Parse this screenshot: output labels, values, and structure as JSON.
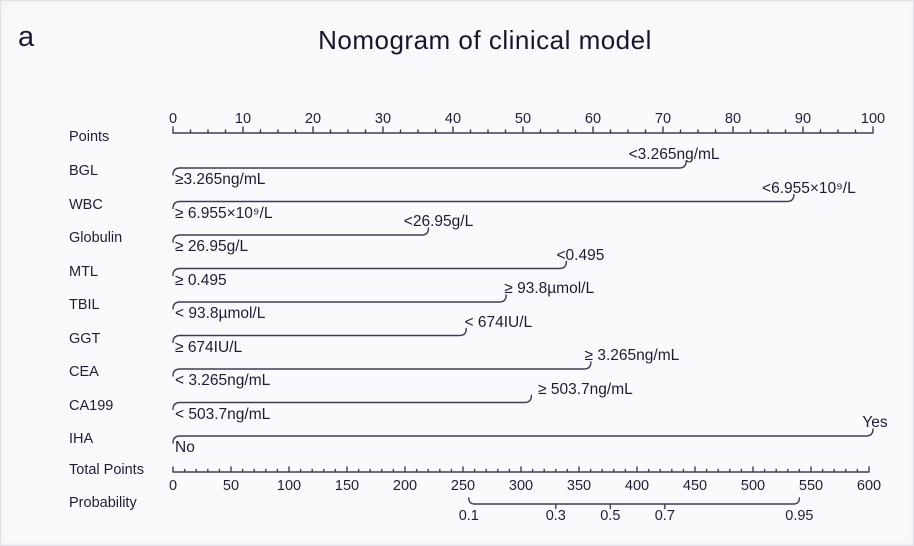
{
  "panel_label": "a",
  "title": "Nomogram of clinical model",
  "chart_data": {
    "type": "nomogram",
    "title": "Nomogram of clinical model",
    "panel_label": "a",
    "ink_color": "#20203a",
    "line_color": "#3c3c58",
    "background_color": "#fafafd",
    "points_axis": {
      "label": "Points",
      "min": 0,
      "max": 100,
      "major_tick_step": 10,
      "minor_tick_step": 2.5,
      "ticks": [
        0,
        10,
        20,
        30,
        40,
        50,
        60,
        70,
        80,
        90,
        100
      ]
    },
    "variables": [
      {
        "name": "BGL",
        "extent_points": 73.3,
        "low_label": "≥3.265ng/mL",
        "high_label": "<3.265ng/mL",
        "high_label_dx": -12
      },
      {
        "name": "WBC",
        "extent_points": 88.7,
        "low_label": "≥ 6.955×10⁹/L",
        "high_label": "<6.955×10⁹/L",
        "high_label_dx": 15
      },
      {
        "name": "Globulin",
        "extent_points": 36.5,
        "low_label": "≥ 26.95g/L",
        "high_label": "<26.95g/L",
        "high_label_dx": 10
      },
      {
        "name": "MTL",
        "extent_points": 56.2,
        "low_label": "≥ 0.495",
        "high_label": "<0.495",
        "high_label_dx": 14
      },
      {
        "name": "TBIL",
        "extent_points": 47.6,
        "low_label": "< 93.8µmol/L",
        "high_label": "≥ 93.8µmol/L",
        "high_label_dx": 43
      },
      {
        "name": "GGT",
        "extent_points": 41.9,
        "low_label": "≥ 674IU/L",
        "high_label": "< 674IU/L",
        "high_label_dx": 32
      },
      {
        "name": "CEA",
        "extent_points": 59.7,
        "low_label": "< 3.265ng/mL",
        "high_label": "≥ 3.265ng/mL",
        "high_label_dx": 41
      },
      {
        "name": "CA199",
        "extent_points": 51.2,
        "low_label": "< 503.7ng/mL",
        "high_label": "≥ 503.7ng/mL",
        "high_label_dx": 54
      },
      {
        "name": "IHA",
        "extent_points": 100,
        "low_label": "No",
        "high_label": "Yes",
        "high_label_dx": 2
      }
    ],
    "total_points_axis": {
      "label": "Total Points",
      "min": 0,
      "max": 600,
      "major_tick_step": 50,
      "minor_tick_step": 10,
      "ticks": [
        0,
        50,
        100,
        150,
        200,
        250,
        300,
        350,
        400,
        450,
        500,
        550,
        600
      ]
    },
    "probability_axis": {
      "label": "Probability",
      "ticks": [
        "0.1",
        "0.3",
        "0.5",
        "0.7",
        "0.95"
      ],
      "tick_positions_total_points": [
        255,
        330,
        377,
        424,
        540
      ]
    }
  }
}
